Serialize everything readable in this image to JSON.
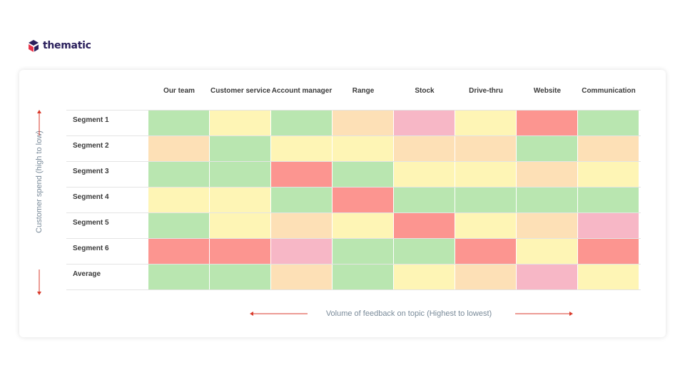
{
  "brand": {
    "name": "thematic",
    "colors": {
      "purple": "#2a1f5c",
      "red": "#e8354a"
    }
  },
  "arrow_color": "#d93a2b",
  "palette": {
    "green": "#b9e6b0",
    "yellow": "#fef5b5",
    "peach": "#fde0b6",
    "pink": "#f7b7c6",
    "red": "#fc9590"
  },
  "chart_data": {
    "type": "heatmap",
    "columns": [
      "Our team",
      "Customer service",
      "Account manager",
      "Range",
      "Stock",
      "Drive-thru",
      "Website",
      "Communication"
    ],
    "rows": [
      "Segment 1",
      "Segment 2",
      "Segment 3",
      "Segment 4",
      "Segment 5",
      "Segment 6",
      "Average"
    ],
    "cells": [
      [
        "green",
        "yellow",
        "green",
        "peach",
        "pink",
        "yellow",
        "red",
        "green"
      ],
      [
        "peach",
        "green",
        "yellow",
        "yellow",
        "peach",
        "peach",
        "green",
        "peach"
      ],
      [
        "green",
        "green",
        "red",
        "green",
        "yellow",
        "yellow",
        "peach",
        "yellow"
      ],
      [
        "yellow",
        "yellow",
        "green",
        "red",
        "green",
        "green",
        "green",
        "green"
      ],
      [
        "green",
        "yellow",
        "peach",
        "yellow",
        "red",
        "yellow",
        "peach",
        "pink"
      ],
      [
        "red",
        "red",
        "pink",
        "green",
        "green",
        "red",
        "yellow",
        "red"
      ],
      [
        "green",
        "green",
        "peach",
        "green",
        "yellow",
        "peach",
        "pink",
        "yellow"
      ]
    ],
    "ylabel": "Customer spend (high to low)",
    "xlabel": "Volume of feedback on topic (Highest to lowest)"
  }
}
